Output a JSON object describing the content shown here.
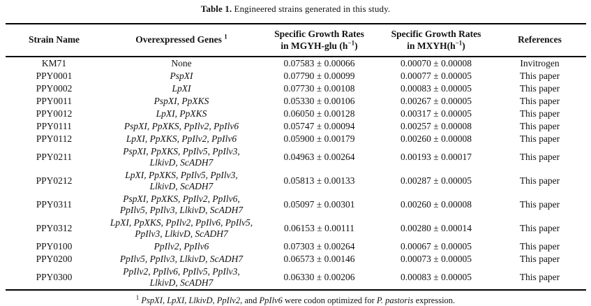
{
  "caption": {
    "label": "Table 1.",
    "text": " Engineered strains generated in this study."
  },
  "table": {
    "headers": [
      {
        "id": "strain",
        "lines": [
          [
            {
              "t": "Strain Name"
            }
          ]
        ]
      },
      {
        "id": "genes",
        "lines": [
          [
            {
              "t": "Overexpressed Genes "
            },
            {
              "t": "1",
              "sup": true
            }
          ]
        ]
      },
      {
        "id": "mgyh",
        "lines": [
          [
            {
              "t": "Specific Growth Rates"
            }
          ],
          [
            {
              "t": "in MGYH-glu (h"
            },
            {
              "t": "−1",
              "sup": true
            },
            {
              "t": ")"
            }
          ]
        ]
      },
      {
        "id": "mxyh",
        "lines": [
          [
            {
              "t": "Specific Growth Rates"
            }
          ],
          [
            {
              "t": "in MXYH(h"
            },
            {
              "t": "−1",
              "sup": true
            },
            {
              "t": ")"
            }
          ]
        ]
      },
      {
        "id": "references",
        "lines": [
          [
            {
              "t": "References"
            }
          ]
        ]
      }
    ],
    "rows": [
      {
        "strain": "KM71",
        "genes_lines": [
          "None"
        ],
        "genes_italic": false,
        "mgyh": "0.07583 ± 0.00066",
        "mxyh": "0.00070 ± 0.00008",
        "reference": "Invitrogen"
      },
      {
        "strain": "PPY0001",
        "genes_lines": [
          "PspXI"
        ],
        "genes_italic": true,
        "mgyh": "0.07790 ± 0.00099",
        "mxyh": "0.00077 ± 0.00005",
        "reference": "This paper"
      },
      {
        "strain": "PPY0002",
        "genes_lines": [
          "LpXI"
        ],
        "genes_italic": true,
        "mgyh": "0.07730 ± 0.00108",
        "mxyh": "0.00083 ± 0.00005",
        "reference": "This paper"
      },
      {
        "strain": "PPY0011",
        "genes_lines": [
          "PspXI, PpXKS"
        ],
        "genes_italic": true,
        "mgyh": "0.05330 ± 0.00106",
        "mxyh": "0.00267 ± 0.00005",
        "reference": "This paper"
      },
      {
        "strain": "PPY0012",
        "genes_lines": [
          "LpXI, PpXKS"
        ],
        "genes_italic": true,
        "mgyh": "0.06050 ± 0.00128",
        "mxyh": "0.00317 ± 0.00005",
        "reference": "This paper"
      },
      {
        "strain": "PPY0111",
        "genes_lines": [
          "PspXI, PpXKS, PpIlv2, PpIlv6"
        ],
        "genes_italic": true,
        "mgyh": "0.05747 ± 0.00094",
        "mxyh": "0.00257 ± 0.00008",
        "reference": "This paper"
      },
      {
        "strain": "PPY0112",
        "genes_lines": [
          "LpXI, PpXKS, PpIlv2, PpIlv6"
        ],
        "genes_italic": true,
        "mgyh": "0.05900 ± 0.00179",
        "mxyh": "0.00260 ± 0.00008",
        "reference": "This paper"
      },
      {
        "strain": "PPY0211",
        "genes_lines": [
          "PspXI, PpXKS, PpIlv5, PpIlv3,",
          "LlkivD, ScADH7"
        ],
        "genes_italic": true,
        "mgyh": "0.04963 ± 0.00264",
        "mxyh": "0.00193 ± 0.00017",
        "reference": "This paper"
      },
      {
        "strain": "PPY0212",
        "genes_lines": [
          "LpXI, PpXKS, PpIlv5, PpIlv3,",
          "LlkivD, ScADH7"
        ],
        "genes_italic": true,
        "mgyh": "0.05813 ± 0.00133",
        "mxyh": "0.00287 ± 0.00005",
        "reference": "This paper"
      },
      {
        "strain": "PPY0311",
        "genes_lines": [
          "PspXI, PpXKS, PpIlv2, PpIlv6,",
          "PpIlv5, PpIlv3, LlkivD, ScADH7"
        ],
        "genes_italic": true,
        "mgyh": "0.05097 ± 0.00301",
        "mxyh": "0.00260 ± 0.00008",
        "reference": "This paper"
      },
      {
        "strain": "PPY0312",
        "genes_lines": [
          "LpXI, PpXKS, PpIlv2, PpIlv6, PpIlv5,",
          "PpIlv3, LlkivD, ScADH7"
        ],
        "genes_italic": true,
        "mgyh": "0.06153 ± 0.00111",
        "mxyh": "0.00280 ± 0.00014",
        "reference": "This paper"
      },
      {
        "strain": "PPY0100",
        "genes_lines": [
          "PpIlv2, PpIlv6"
        ],
        "genes_italic": true,
        "mgyh": "0.07303 ± 0.00264",
        "mxyh": "0.00067 ± 0.00005",
        "reference": "This paper"
      },
      {
        "strain": "PPY0200",
        "genes_lines": [
          "PpIlv5, PpIlv3, LlkivD, ScADH7"
        ],
        "genes_italic": true,
        "mgyh": "0.06573 ± 0.00146",
        "mxyh": "0.00073 ± 0.00005",
        "reference": "This paper"
      },
      {
        "strain": "PPY0300",
        "genes_lines": [
          "PpIlv2, PpIlv6, PpIlv5, PpIlv3,",
          "LlkivD, ScADH7"
        ],
        "genes_italic": true,
        "mgyh": "0.06330 ± 0.00206",
        "mxyh": "0.00083 ± 0.00005",
        "reference": "This paper"
      }
    ]
  },
  "footnote": {
    "sup": "1",
    "segments": [
      {
        "t": " ",
        "i": false
      },
      {
        "t": "PspXI",
        "i": true
      },
      {
        "t": ", ",
        "i": false
      },
      {
        "t": "LpXI",
        "i": true
      },
      {
        "t": ", ",
        "i": false
      },
      {
        "t": "LlkivD",
        "i": true
      },
      {
        "t": ", ",
        "i": false
      },
      {
        "t": "PpIlv2",
        "i": true
      },
      {
        "t": ", and ",
        "i": false
      },
      {
        "t": "PpIlv6",
        "i": true
      },
      {
        "t": " were codon optimized for ",
        "i": false
      },
      {
        "t": "P. pastoris",
        "i": true
      },
      {
        "t": " expression.",
        "i": false
      }
    ]
  },
  "colors": {
    "background": "#ffffff",
    "text": "#121212",
    "rule": "#000000"
  }
}
